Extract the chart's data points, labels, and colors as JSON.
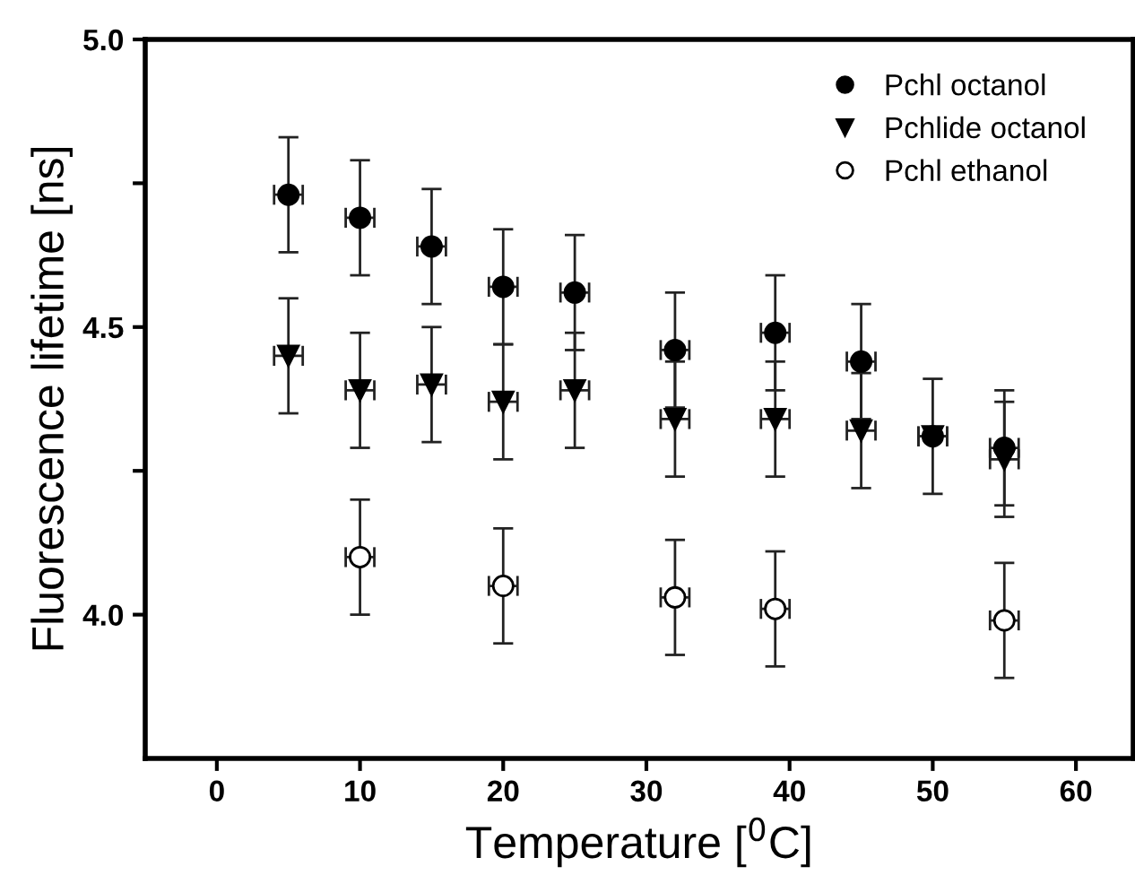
{
  "chart_data": {
    "type": "scatter",
    "xlabel": "Temperature [$^{0}$C]",
    "ylabel": "Fluorescence lifetime [ns]",
    "xlim": [
      -5,
      64
    ],
    "ylim": [
      3.75,
      5.0
    ],
    "xticks": [
      0,
      10,
      20,
      30,
      40,
      50,
      60
    ],
    "yticks": [
      {
        "value": 4.0,
        "label": "4.0"
      },
      {
        "value": 4.25,
        "label": null
      },
      {
        "value": 4.5,
        "label": "4.5"
      },
      {
        "value": 4.75,
        "label": null
      },
      {
        "value": 5.0,
        "label": "5.0"
      }
    ],
    "legend": "top right",
    "grid": false,
    "series": [
      {
        "name": "Pchl octanol",
        "color": "#000000",
        "marker": "circle",
        "x": [
          5,
          10,
          15,
          20,
          25,
          32,
          39,
          45,
          50,
          55
        ],
        "values": [
          4.73,
          4.69,
          4.64,
          4.57,
          4.56,
          4.46,
          4.49,
          4.44,
          4.31,
          4.29
        ],
        "errors": [
          0.1,
          0.1,
          0.1,
          0.1,
          0.1,
          0.1,
          0.1,
          0.1,
          0.1,
          0.1
        ],
        "xerrors": [
          1,
          1,
          1,
          1,
          1,
          1,
          1,
          1,
          1,
          1
        ]
      },
      {
        "name": "Pchlide octanol",
        "color": "#000000",
        "marker": "triangle",
        "x": [
          5,
          10,
          15,
          20,
          25,
          32,
          39,
          45,
          50,
          55
        ],
        "values": [
          4.45,
          4.39,
          4.4,
          4.37,
          4.39,
          4.34,
          4.34,
          4.32,
          4.31,
          4.27
        ],
        "errors": [
          0.1,
          0.1,
          0.1,
          0.1,
          0.1,
          0.1,
          0.1,
          0.1,
          null,
          0.1
        ],
        "xerrors": [
          1,
          1,
          1,
          1,
          1,
          1,
          1,
          1,
          1,
          1
        ]
      },
      {
        "name": "Pchl ethanol",
        "color": "#ffffff",
        "marker": "circle",
        "x": [
          10,
          20,
          32,
          39,
          55
        ],
        "values": [
          4.1,
          4.05,
          4.03,
          4.01,
          3.99
        ],
        "errors": [
          0.1,
          0.1,
          0.1,
          0.1,
          0.1
        ],
        "xerrors": [
          1,
          1,
          1,
          1,
          1
        ]
      }
    ]
  }
}
